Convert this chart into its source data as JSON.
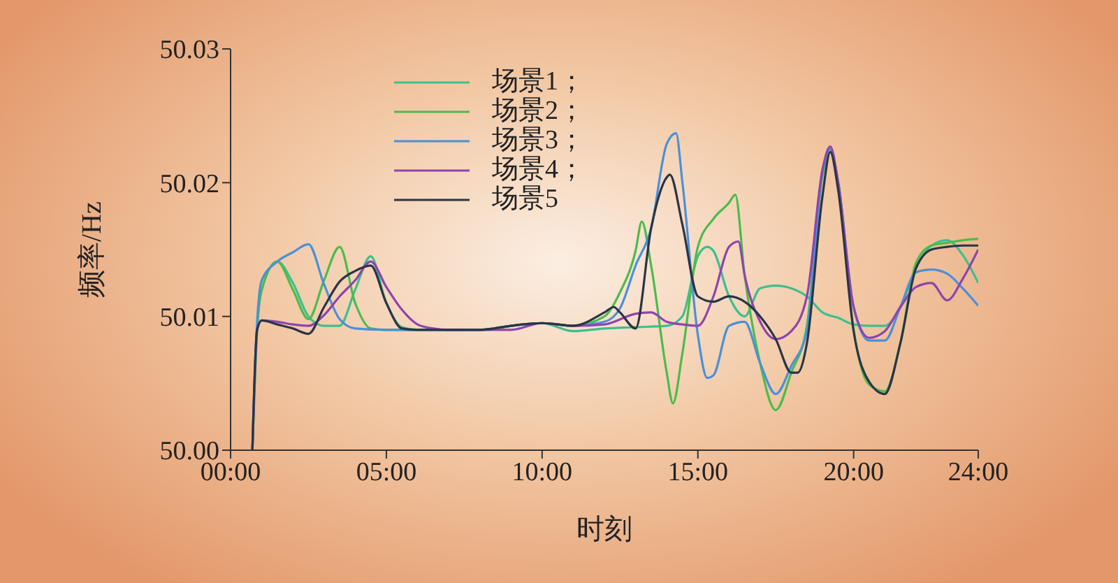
{
  "chart_data": {
    "type": "line",
    "xlabel": "时刻",
    "ylabel": "频率/Hz",
    "xlim": [
      0,
      24
    ],
    "xticks": [
      {
        "value": 0,
        "label": "00:00"
      },
      {
        "value": 5,
        "label": "05:00"
      },
      {
        "value": 10,
        "label": "10:00"
      },
      {
        "value": 15,
        "label": "15:00"
      },
      {
        "value": 20,
        "label": "20:00"
      },
      {
        "value": 24,
        "label": "24:00"
      }
    ],
    "ylim": [
      50,
      50.03
    ],
    "yticks": [
      {
        "value": 50,
        "label": "50.00"
      },
      {
        "value": 50.01,
        "label": "50.01"
      },
      {
        "value": 50.02,
        "label": "50.02"
      },
      {
        "value": 50.03,
        "label": "50.03"
      }
    ],
    "legend": "top left",
    "series": [
      {
        "name": "场景1；",
        "color": "#3dbf8c",
        "x": [
          0.7,
          0.85,
          1,
          1.5,
          2,
          2.5,
          3,
          3.5,
          4,
          4.5,
          5,
          5.5,
          6,
          7,
          8,
          9,
          10,
          11,
          12,
          13,
          14,
          14.5,
          15,
          15.3,
          15.5,
          16,
          16.5,
          17,
          17.5,
          18,
          18.5,
          19,
          19.5,
          20,
          20.5,
          21,
          21.5,
          22,
          22.5,
          23,
          23.5,
          24
        ],
        "values": [
          50.0,
          50.009,
          50.012,
          50.0141,
          50.0125,
          50.01,
          50.0093,
          50.0093,
          50.012,
          50.0145,
          50.011,
          50.0092,
          50.009,
          50.009,
          50.009,
          50.0093,
          50.0095,
          50.0089,
          50.0091,
          50.0092,
          50.0093,
          50.01,
          50.0145,
          50.0152,
          50.0149,
          50.0115,
          50.01,
          50.0121,
          50.0123,
          50.0121,
          50.0115,
          50.0103,
          50.0099,
          50.0094,
          50.0093,
          50.0093,
          50.0107,
          50.0136,
          50.0153,
          50.0157,
          50.0146,
          50.0125
        ]
      },
      {
        "name": "场景2；",
        "color": "#4cbb4c",
        "x": [
          0.7,
          0.85,
          1,
          1.5,
          2,
          2.5,
          3,
          3.5,
          4,
          4.5,
          5,
          5.5,
          6,
          7,
          8,
          9,
          10,
          11,
          12,
          12.5,
          13,
          13.2,
          13.5,
          14,
          14.2,
          14.5,
          15,
          15.5,
          16,
          16.2,
          16.5,
          17,
          17.5,
          18,
          18.5,
          19,
          19.25,
          19.5,
          20,
          20.5,
          21,
          21.5,
          22,
          22.5,
          23,
          23.5,
          24
        ],
        "values": [
          50.0,
          50.009,
          50.012,
          50.0141,
          50.012,
          50.0098,
          50.0127,
          50.0152,
          50.011,
          50.0091,
          50.009,
          50.009,
          50.009,
          50.009,
          50.009,
          50.0093,
          50.0095,
          50.0093,
          50.01,
          50.0118,
          50.0149,
          50.0171,
          50.0138,
          50.0058,
          50.0035,
          50.0072,
          50.0152,
          50.0173,
          50.0185,
          50.0191,
          50.0131,
          50.0065,
          50.003,
          50.0058,
          50.0093,
          50.0205,
          50.0223,
          50.0201,
          50.009,
          50.0049,
          50.0044,
          50.008,
          50.014,
          50.0153,
          50.0155,
          50.0157,
          50.0158
        ]
      },
      {
        "name": "场景3；",
        "color": "#4a90d9",
        "x": [
          0.7,
          0.85,
          1,
          1.5,
          2,
          2.5,
          3,
          3.5,
          4,
          5,
          6,
          7,
          8,
          9,
          10,
          11,
          12,
          12.5,
          13,
          13.5,
          14,
          14.3,
          14.5,
          15,
          15.3,
          15.5,
          16,
          16.5,
          17,
          17.5,
          18,
          18.5,
          19,
          19.25,
          19.5,
          20,
          20.5,
          21,
          21.5,
          22,
          22.5,
          23,
          23.5,
          24
        ],
        "values": [
          50.0,
          50.0095,
          50.0127,
          50.0141,
          50.0148,
          50.0154,
          50.0124,
          50.0098,
          50.0091,
          50.009,
          50.009,
          50.009,
          50.009,
          50.0093,
          50.0095,
          50.0093,
          50.0096,
          50.0106,
          50.0138,
          50.0166,
          50.0229,
          50.0237,
          50.0201,
          50.0086,
          50.0054,
          50.0056,
          50.0093,
          50.0096,
          50.0065,
          50.0042,
          50.0063,
          50.0089,
          50.0208,
          50.0225,
          50.0201,
          50.0107,
          50.0082,
          50.0082,
          50.0107,
          50.0133,
          50.0135,
          50.0132,
          50.0121,
          50.0108
        ]
      },
      {
        "name": "场景4；",
        "color": "#8e44ad",
        "x": [
          0.7,
          0.85,
          1,
          1.5,
          2,
          2.5,
          3,
          3.5,
          4,
          4.5,
          5,
          5.5,
          6,
          6.5,
          7,
          8,
          9,
          10,
          11,
          12,
          13,
          13.5,
          14,
          14.5,
          15,
          15.5,
          16,
          16.3,
          16.5,
          17,
          17.5,
          18,
          18.5,
          19,
          19.25,
          19.5,
          20,
          20.5,
          21,
          21.5,
          22,
          22.5,
          23,
          23.5,
          24
        ],
        "values": [
          50.0,
          50.009,
          50.0097,
          50.0096,
          50.0094,
          50.0093,
          50.0101,
          50.0115,
          50.0127,
          50.0141,
          50.0122,
          50.0105,
          50.0094,
          50.0091,
          50.009,
          50.009,
          50.009,
          50.0095,
          50.0093,
          50.0094,
          50.0102,
          50.0103,
          50.0096,
          50.0094,
          50.0093,
          50.0115,
          50.0152,
          50.0156,
          50.0131,
          50.0096,
          50.0083,
          50.0089,
          50.0115,
          50.021,
          50.0227,
          50.0201,
          50.0107,
          50.0084,
          50.0089,
          50.0107,
          50.0122,
          50.0125,
          50.0112,
          50.0128,
          50.015
        ]
      },
      {
        "name": "场景5",
        "color": "#2b3445",
        "x": [
          0.7,
          0.85,
          1,
          1.5,
          2,
          2.5,
          3,
          3.5,
          4,
          4.5,
          5,
          5.5,
          6,
          7,
          8,
          9,
          10,
          11,
          12,
          12.3,
          12.5,
          13,
          13.5,
          14,
          14.1,
          14.5,
          15,
          15.5,
          16,
          16.5,
          17,
          17.5,
          18,
          18.2,
          18.5,
          19,
          19.25,
          19.5,
          20,
          20.5,
          21,
          21.5,
          22,
          22.5,
          23,
          23.5,
          24
        ],
        "values": [
          50.0,
          50.009,
          50.0097,
          50.0094,
          50.0091,
          50.0087,
          50.0107,
          50.0126,
          50.0134,
          50.0138,
          50.011,
          50.0091,
          50.009,
          50.009,
          50.009,
          50.0093,
          50.0095,
          50.0093,
          50.0103,
          50.0107,
          50.0103,
          50.0091,
          50.0166,
          50.0204,
          50.0206,
          50.0169,
          50.0115,
          50.0111,
          50.0115,
          50.0111,
          50.01,
          50.0083,
          50.0058,
          50.0058,
          50.008,
          50.019,
          50.0223,
          50.0195,
          50.0089,
          50.0051,
          50.0042,
          50.008,
          50.0136,
          50.015,
          50.0152,
          50.0153,
          50.0153
        ]
      }
    ]
  }
}
